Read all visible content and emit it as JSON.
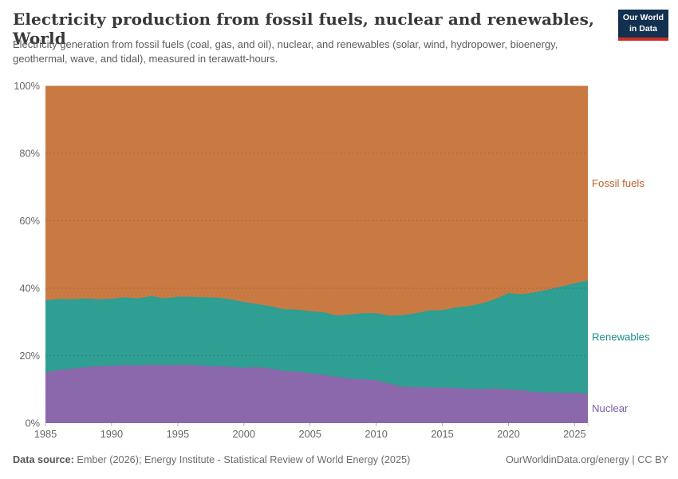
{
  "header": {
    "title": "Electricity production from fossil fuels, nuclear and renewables, World",
    "subtitle": "Electricity generation from fossil fuels (coal, gas, and oil), nuclear, and renewables (solar, wind, hydropower, bioenergy, geothermal, wave, and tidal), measured in terawatt-hours."
  },
  "logo": {
    "line1": "Our World",
    "line2": "in Data",
    "bg_color": "#12304f",
    "bar_color": "#cb2d24"
  },
  "chart_data": {
    "type": "area",
    "stacking": "percent",
    "title": "Electricity production from fossil fuels, nuclear and renewables, World",
    "ylabel": "",
    "xlabel": "",
    "ylim": [
      0,
      100
    ],
    "x_range": [
      1985,
      2026
    ],
    "grid": "dashed-horizontal",
    "legend_position": "right",
    "years": [
      1985,
      1986,
      1987,
      1988,
      1989,
      1990,
      1991,
      1992,
      1993,
      1994,
      1995,
      1996,
      1997,
      1998,
      1999,
      2000,
      2001,
      2002,
      2003,
      2004,
      2005,
      2006,
      2007,
      2008,
      2009,
      2010,
      2011,
      2012,
      2013,
      2014,
      2015,
      2016,
      2017,
      2018,
      2019,
      2020,
      2021,
      2022,
      2023,
      2024,
      2025,
      2026
    ],
    "series": [
      {
        "name": "Nuclear",
        "color": "#8b67ab",
        "label_color": "#7c5da6",
        "values": [
          15.1,
          15.8,
          16.1,
          16.6,
          16.9,
          17.0,
          17.2,
          17.1,
          17.3,
          17.2,
          17.2,
          17.3,
          17.0,
          16.9,
          16.7,
          16.4,
          16.6,
          16.2,
          15.5,
          15.3,
          14.8,
          14.4,
          13.7,
          13.2,
          13.0,
          12.7,
          11.7,
          10.8,
          10.7,
          10.6,
          10.5,
          10.4,
          10.2,
          10.1,
          10.3,
          10.0,
          9.8,
          9.2,
          9.1,
          9.0,
          8.9,
          8.8
        ]
      },
      {
        "name": "Renewables",
        "color": "#2f9e93",
        "label_color": "#1f8f85",
        "values": [
          21.3,
          21.0,
          20.6,
          20.4,
          19.8,
          19.9,
          20.1,
          19.9,
          20.4,
          19.8,
          20.3,
          20.2,
          20.3,
          20.3,
          20.0,
          19.5,
          18.7,
          18.5,
          18.3,
          18.4,
          18.4,
          18.5,
          18.2,
          19.0,
          19.6,
          19.9,
          20.2,
          21.2,
          21.9,
          22.8,
          23.0,
          23.9,
          24.5,
          25.4,
          26.5,
          28.5,
          28.4,
          29.6,
          30.5,
          31.5,
          32.6,
          33.5
        ]
      },
      {
        "name": "Fossil fuels",
        "color": "#c97a43",
        "label_color": "#be5e2b",
        "values": [
          63.6,
          63.2,
          63.3,
          63.0,
          63.3,
          63.1,
          62.7,
          63.0,
          62.3,
          63.0,
          62.5,
          62.5,
          62.7,
          62.8,
          63.3,
          64.1,
          64.7,
          65.3,
          66.2,
          66.3,
          66.8,
          67.1,
          68.1,
          67.8,
          67.4,
          67.4,
          68.1,
          68.0,
          67.4,
          66.6,
          66.5,
          65.7,
          65.3,
          64.5,
          63.2,
          61.5,
          61.8,
          61.2,
          60.4,
          59.5,
          58.5,
          57.7
        ]
      }
    ],
    "y_ticks": [
      {
        "v": 0,
        "label": "0%"
      },
      {
        "v": 20,
        "label": "20%"
      },
      {
        "v": 40,
        "label": "40%"
      },
      {
        "v": 60,
        "label": "60%"
      },
      {
        "v": 80,
        "label": "80%"
      },
      {
        "v": 100,
        "label": "100%"
      }
    ],
    "x_ticks": [
      {
        "v": 1985,
        "label": "1985"
      },
      {
        "v": 1990,
        "label": "1990"
      },
      {
        "v": 1995,
        "label": "1995"
      },
      {
        "v": 2000,
        "label": "2000"
      },
      {
        "v": 2005,
        "label": "2005"
      },
      {
        "v": 2010,
        "label": "2010"
      },
      {
        "v": 2015,
        "label": "2015"
      },
      {
        "v": 2020,
        "label": "2020"
      },
      {
        "v": 2025,
        "label": "2025"
      }
    ],
    "gridline_values": [
      20,
      40,
      60,
      80
    ]
  },
  "footer": {
    "source_label": "Data source:",
    "source_text": " Ember (2026); Energy Institute - Statistical Review of World Energy (2025)",
    "site_link": "OurWorldinData.org/energy",
    "divider": " | ",
    "license": "CC BY"
  }
}
